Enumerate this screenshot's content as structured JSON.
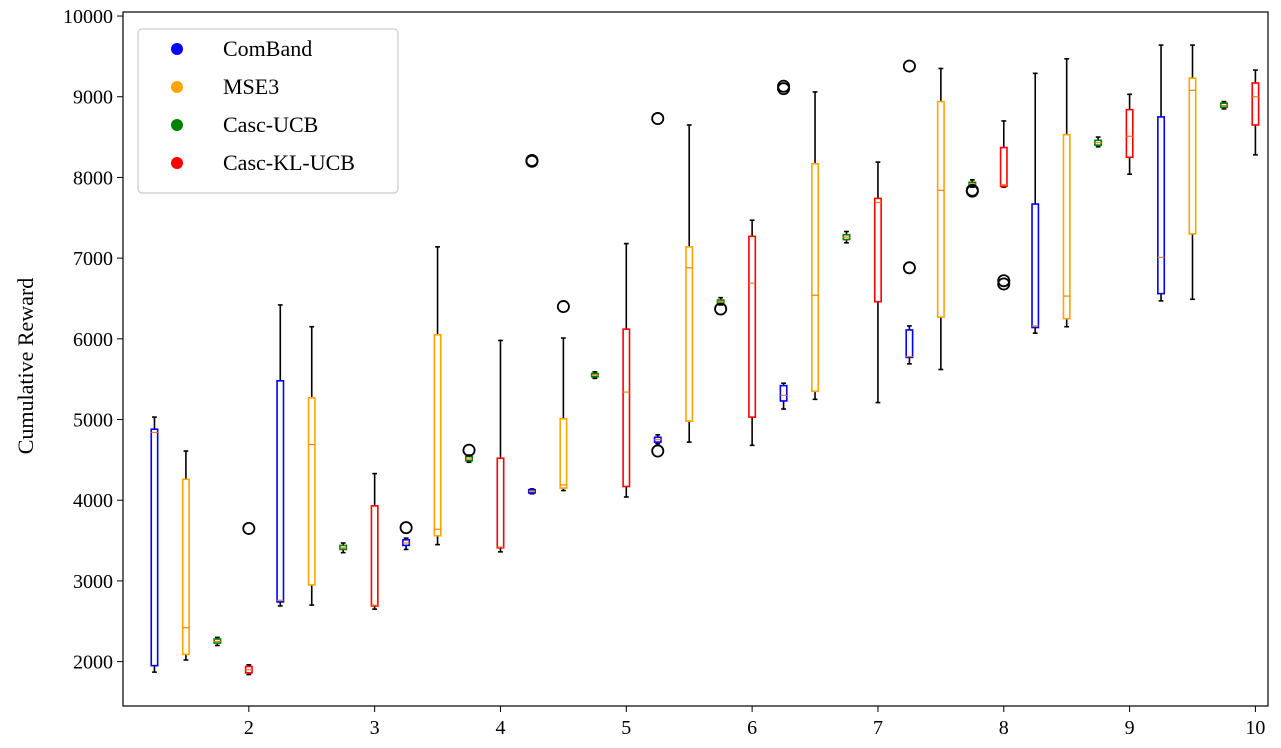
{
  "chart_data": {
    "type": "boxplot",
    "title": "",
    "xlabel": "",
    "ylabel": "Cumulative Reward",
    "xlim": [
      1.0,
      10.1
    ],
    "ylim": [
      1450,
      10050
    ],
    "xticks": [
      2,
      3,
      4,
      5,
      6,
      7,
      8,
      9,
      10
    ],
    "yticks": [
      2000,
      3000,
      4000,
      5000,
      6000,
      7000,
      8000,
      9000,
      10000
    ],
    "legend_position": "top-left",
    "grid": false,
    "series": [
      {
        "name": "ComBand",
        "color": "#0000ff",
        "boxes": [
          {
            "x": 1.25,
            "whislo": 1870,
            "q1": 1950,
            "med": 4840,
            "q3": 4880,
            "whishi": 5030,
            "fliers": []
          },
          {
            "x": 2.25,
            "whislo": 2690,
            "q1": 2740,
            "med": 2760,
            "q3": 5480,
            "whishi": 6420,
            "fliers": []
          },
          {
            "x": 3.25,
            "whislo": 3390,
            "q1": 3440,
            "med": 3470,
            "q3": 3510,
            "whishi": 3530,
            "fliers": [
              3660
            ]
          },
          {
            "x": 4.25,
            "whislo": 4080,
            "q1": 4090,
            "med": 4110,
            "q3": 4130,
            "whishi": 4140,
            "fliers": [
              8210,
              8200
            ]
          },
          {
            "x": 5.25,
            "whislo": 4700,
            "q1": 4720,
            "med": 4750,
            "q3": 4780,
            "whishi": 4810,
            "fliers": [
              4610,
              8730
            ]
          },
          {
            "x": 6.25,
            "whislo": 5130,
            "q1": 5230,
            "med": 5300,
            "q3": 5420,
            "whishi": 5450,
            "fliers": [
              9100,
              9130
            ]
          },
          {
            "x": 7.25,
            "whislo": 5690,
            "q1": 5770,
            "med": 5780,
            "q3": 6110,
            "whishi": 6160,
            "fliers": [
              6880,
              9380
            ]
          },
          {
            "x": 8.25,
            "whislo": 6070,
            "q1": 6140,
            "med": 6160,
            "q3": 7670,
            "whishi": 9290,
            "fliers": []
          },
          {
            "x": 9.25,
            "whislo": 6470,
            "q1": 6560,
            "med": 7010,
            "q3": 8750,
            "whishi": 9640,
            "fliers": []
          }
        ]
      },
      {
        "name": "MSE3",
        "color": "#ffa500",
        "boxes": [
          {
            "x": 1.5,
            "whislo": 2020,
            "q1": 2090,
            "med": 2420,
            "q3": 4260,
            "whishi": 4610,
            "fliers": []
          },
          {
            "x": 2.5,
            "whislo": 2700,
            "q1": 2950,
            "med": 4690,
            "q3": 5270,
            "whishi": 6150,
            "fliers": []
          },
          {
            "x": 3.5,
            "whislo": 3450,
            "q1": 3560,
            "med": 3640,
            "q3": 6050,
            "whishi": 7140,
            "fliers": []
          },
          {
            "x": 4.5,
            "whislo": 4120,
            "q1": 4150,
            "med": 4190,
            "q3": 5010,
            "whishi": 6010,
            "fliers": [
              6400
            ]
          },
          {
            "x": 5.5,
            "whislo": 4720,
            "q1": 4980,
            "med": 6880,
            "q3": 7140,
            "whishi": 8650,
            "fliers": []
          },
          {
            "x": 6.5,
            "whislo": 5250,
            "q1": 5350,
            "med": 6540,
            "q3": 8170,
            "whishi": 9060,
            "fliers": []
          },
          {
            "x": 7.5,
            "whislo": 5620,
            "q1": 6270,
            "med": 7840,
            "q3": 8940,
            "whishi": 9350,
            "fliers": []
          },
          {
            "x": 8.5,
            "whislo": 6150,
            "q1": 6250,
            "med": 6530,
            "q3": 8530,
            "whishi": 9470,
            "fliers": []
          },
          {
            "x": 9.5,
            "whislo": 6490,
            "q1": 7300,
            "med": 9080,
            "q3": 9230,
            "whishi": 9640,
            "fliers": []
          }
        ]
      },
      {
        "name": "Casc-UCB",
        "color": "#008000",
        "boxes": [
          {
            "x": 1.75,
            "whislo": 2200,
            "q1": 2230,
            "med": 2250,
            "q3": 2280,
            "whishi": 2300,
            "fliers": []
          },
          {
            "x": 2.75,
            "whislo": 3350,
            "q1": 3390,
            "med": 3410,
            "q3": 3440,
            "whishi": 3470,
            "fliers": []
          },
          {
            "x": 3.75,
            "whislo": 4470,
            "q1": 4490,
            "med": 4510,
            "q3": 4540,
            "whishi": 4560,
            "fliers": [
              4620
            ]
          },
          {
            "x": 4.75,
            "whislo": 5510,
            "q1": 5530,
            "med": 5550,
            "q3": 5570,
            "whishi": 5590,
            "fliers": []
          },
          {
            "x": 5.75,
            "whislo": 6420,
            "q1": 6440,
            "med": 6460,
            "q3": 6480,
            "whishi": 6510,
            "fliers": [
              6370
            ]
          },
          {
            "x": 6.75,
            "whislo": 7190,
            "q1": 7230,
            "med": 7260,
            "q3": 7290,
            "whishi": 7330,
            "fliers": []
          },
          {
            "x": 7.75,
            "whislo": 7880,
            "q1": 7900,
            "med": 7920,
            "q3": 7940,
            "whishi": 7970,
            "fliers": [
              7840,
              7830
            ]
          },
          {
            "x": 8.75,
            "whislo": 8380,
            "q1": 8400,
            "med": 8430,
            "q3": 8460,
            "whishi": 8500,
            "fliers": []
          },
          {
            "x": 9.75,
            "whislo": 8850,
            "q1": 8870,
            "med": 8890,
            "q3": 8920,
            "whishi": 8940,
            "fliers": []
          }
        ]
      },
      {
        "name": "Casc-KL-UCB",
        "color": "#ff0000",
        "boxes": [
          {
            "x": 2.0,
            "whislo": 1840,
            "q1": 1860,
            "med": 1900,
            "q3": 1940,
            "whishi": 1960,
            "fliers": [
              3650
            ]
          },
          {
            "x": 3.0,
            "whislo": 2650,
            "q1": 2690,
            "med": 2700,
            "q3": 3930,
            "whishi": 4330,
            "fliers": []
          },
          {
            "x": 4.0,
            "whislo": 3360,
            "q1": 3410,
            "med": 3420,
            "q3": 4520,
            "whishi": 5980,
            "fliers": []
          },
          {
            "x": 5.0,
            "whislo": 4040,
            "q1": 4170,
            "med": 5340,
            "q3": 6120,
            "whishi": 7180,
            "fliers": []
          },
          {
            "x": 6.0,
            "whislo": 4680,
            "q1": 5030,
            "med": 6690,
            "q3": 7270,
            "whishi": 7470,
            "fliers": []
          },
          {
            "x": 7.0,
            "whislo": 5210,
            "q1": 6460,
            "med": 7690,
            "q3": 7740,
            "whishi": 8190,
            "fliers": []
          },
          {
            "x": 8.0,
            "whislo": 7880,
            "q1": 7890,
            "med": 7910,
            "q3": 8370,
            "whishi": 8700,
            "fliers": [
              6720,
              6680
            ]
          },
          {
            "x": 9.0,
            "whislo": 8040,
            "q1": 8250,
            "med": 8510,
            "q3": 8840,
            "whishi": 9030,
            "fliers": []
          },
          {
            "x": 10.0,
            "whislo": 8280,
            "q1": 8650,
            "med": 9000,
            "q3": 9170,
            "whishi": 9330,
            "fliers": []
          }
        ]
      }
    ]
  },
  "colors": {
    "median": "#ff7f0e",
    "whisker": "#000000",
    "flier": "#000000"
  }
}
